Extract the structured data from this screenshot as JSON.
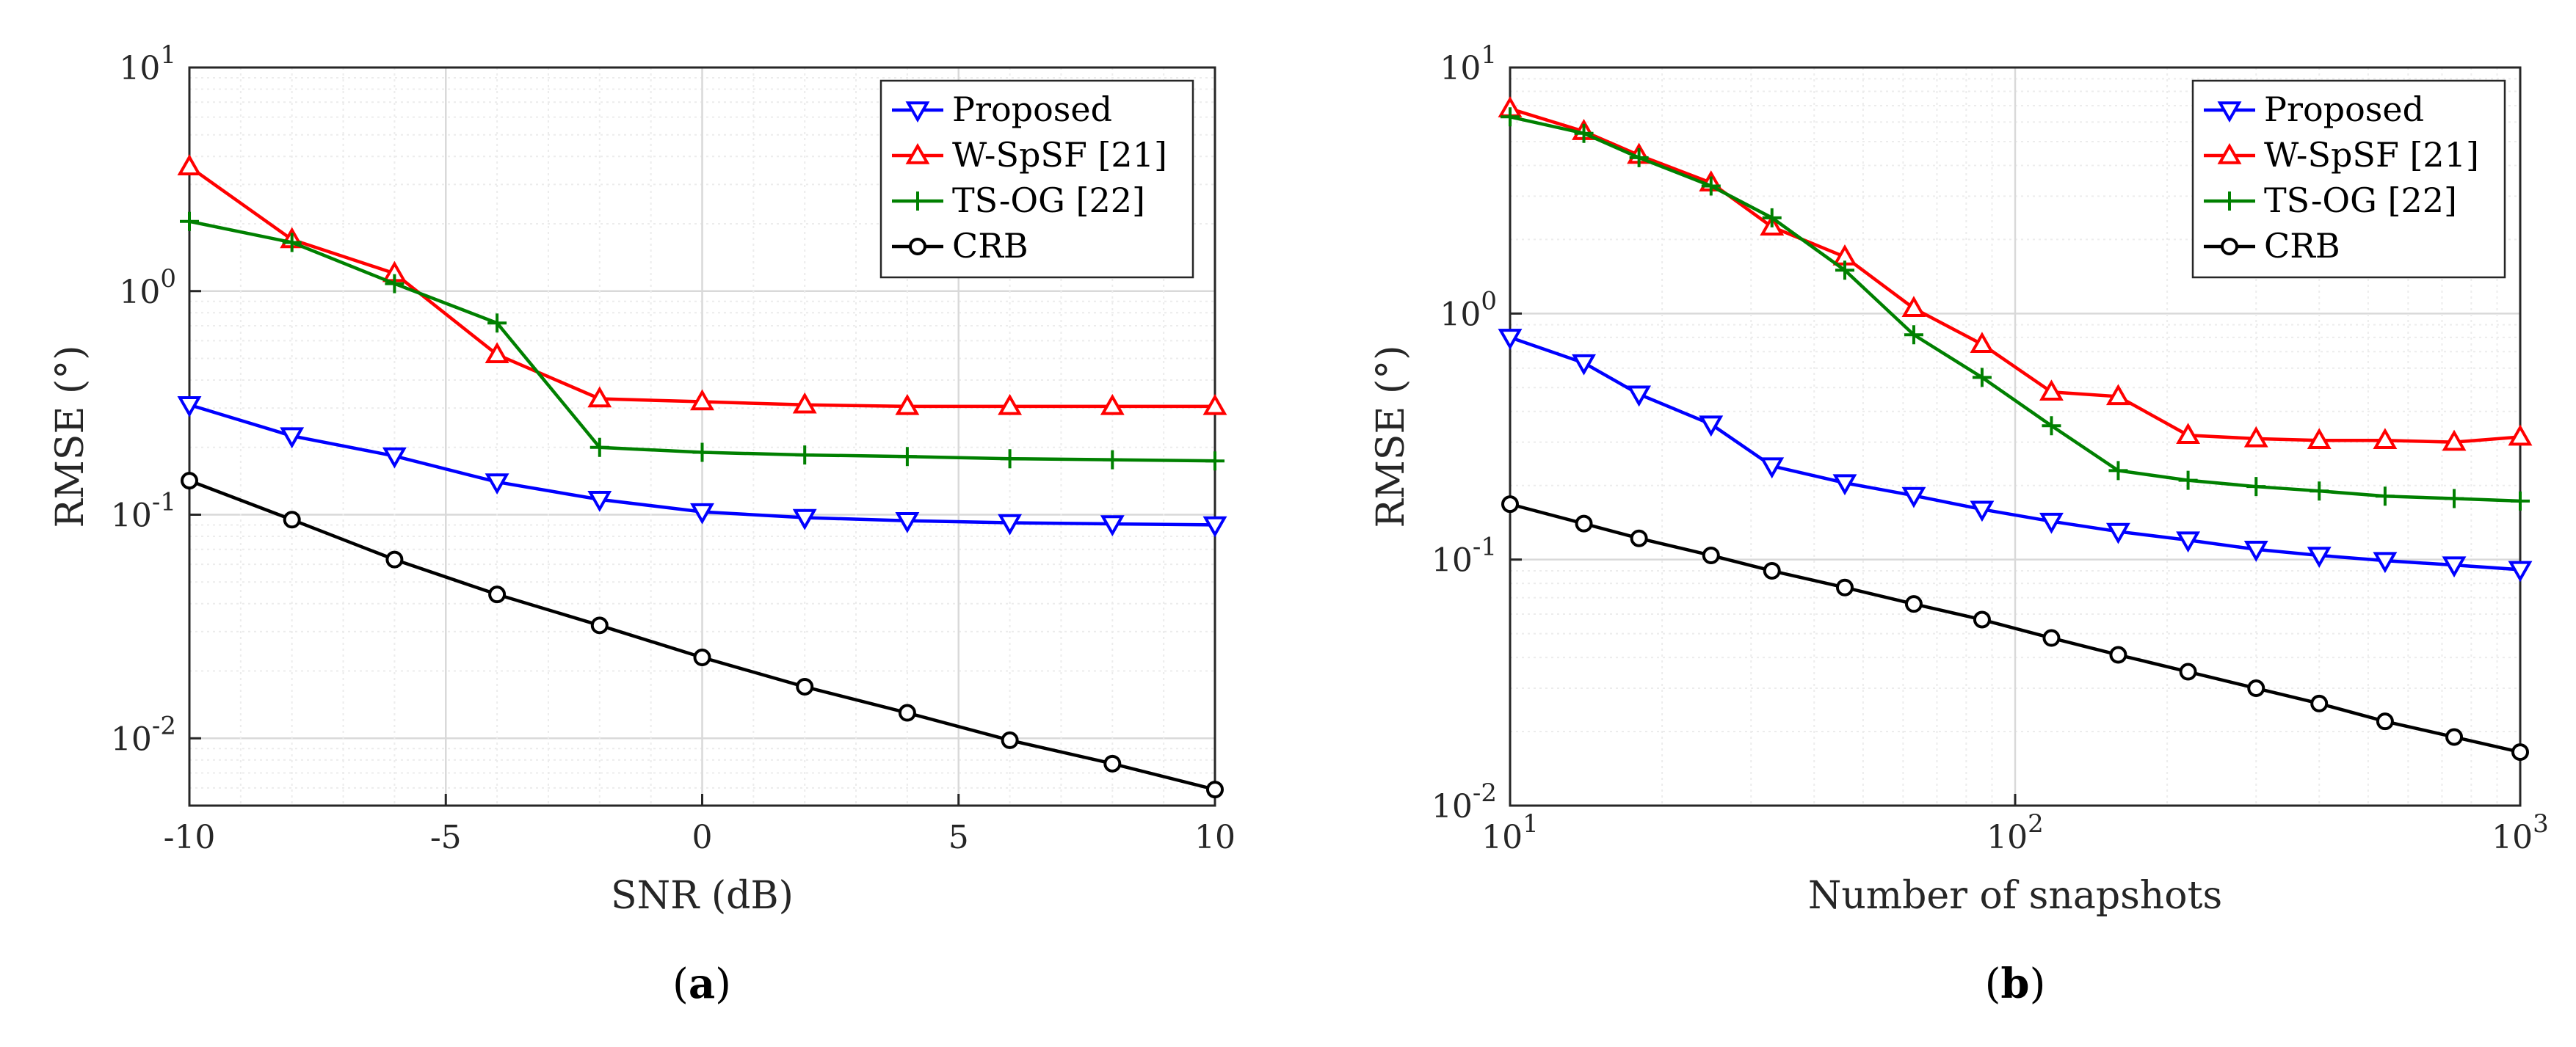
{
  "colors": {
    "proposed": "#0000ff",
    "wspsf": "#ff0000",
    "tsog": "#008000",
    "crb": "#000000"
  },
  "chart_data": [
    {
      "type": "line",
      "panel": "(a)",
      "xscale": "linear",
      "yscale": "log",
      "xlabel": "SNR (dB)",
      "ylabel": "RMSE (°)",
      "xlim": [
        -10,
        10
      ],
      "ylim": [
        0.005,
        10
      ],
      "xticks": [
        -10,
        -5,
        0,
        5,
        10
      ],
      "xtick_labels": [
        "-10",
        "-5",
        "0",
        "5",
        "10"
      ],
      "yticks": [
        0.01,
        0.1,
        1,
        10
      ],
      "ytick_labels": [
        [
          "10",
          "-2"
        ],
        [
          "10",
          "-1"
        ],
        [
          "10",
          "0"
        ],
        [
          "10",
          "1"
        ]
      ],
      "grid": true,
      "legend_position": "top-right",
      "x": [
        -10,
        -8,
        -6,
        -4,
        -2,
        0,
        2,
        4,
        6,
        8,
        10
      ],
      "series": [
        {
          "name": "Proposed",
          "color_key": "proposed",
          "marker": "triangle-down",
          "values": [
            0.31,
            0.225,
            0.183,
            0.14,
            0.117,
            0.103,
            0.097,
            0.094,
            0.092,
            0.091,
            0.09
          ]
        },
        {
          "name": "W-SpSF [21]",
          "color_key": "wspsf",
          "marker": "triangle-up",
          "values": [
            3.6,
            1.7,
            1.2,
            0.52,
            0.33,
            0.32,
            0.31,
            0.305,
            0.305,
            0.305,
            0.305
          ]
        },
        {
          "name": "TS-OG [22]",
          "color_key": "tsog",
          "marker": "plus",
          "values": [
            2.05,
            1.65,
            1.08,
            0.72,
            0.2,
            0.19,
            0.185,
            0.182,
            0.178,
            0.176,
            0.174
          ]
        },
        {
          "name": "CRB",
          "color_key": "crb",
          "marker": "circle",
          "values": [
            0.142,
            0.095,
            0.063,
            0.044,
            0.032,
            0.023,
            0.017,
            0.013,
            0.0098,
            0.0077,
            0.0059
          ]
        }
      ]
    },
    {
      "type": "line",
      "panel": "(b)",
      "xscale": "log",
      "yscale": "log",
      "xlabel": "Number of snapshots",
      "ylabel": "RMSE (°)",
      "xlim": [
        10,
        1000
      ],
      "ylim": [
        0.01,
        10
      ],
      "xticks": [
        10,
        100,
        1000
      ],
      "xtick_labels": [
        [
          "10",
          "1"
        ],
        [
          "10",
          "2"
        ],
        [
          "10",
          "3"
        ]
      ],
      "yticks": [
        0.01,
        0.1,
        1,
        10
      ],
      "ytick_labels": [
        [
          "10",
          "-2"
        ],
        [
          "10",
          "-1"
        ],
        [
          "10",
          "0"
        ],
        [
          "10",
          "1"
        ]
      ],
      "grid": true,
      "legend_position": "top-right",
      "x": [
        10,
        14,
        18,
        25,
        33,
        46,
        63,
        86,
        118,
        160,
        220,
        300,
        400,
        540,
        740,
        1000
      ],
      "series": [
        {
          "name": "Proposed",
          "color_key": "proposed",
          "marker": "triangle-down",
          "values": [
            0.8,
            0.63,
            0.47,
            0.355,
            0.24,
            0.205,
            0.182,
            0.16,
            0.143,
            0.13,
            0.12,
            0.11,
            0.104,
            0.099,
            0.095,
            0.091
          ]
        },
        {
          "name": "W-SpSF [21]",
          "color_key": "wspsf",
          "marker": "triangle-up",
          "values": [
            6.8,
            5.5,
            4.4,
            3.4,
            2.25,
            1.7,
            1.05,
            0.75,
            0.48,
            0.46,
            0.32,
            0.31,
            0.305,
            0.305,
            0.3,
            0.315
          ]
        },
        {
          "name": "TS-OG [22]",
          "color_key": "tsog",
          "marker": "plus",
          "values": [
            6.3,
            5.4,
            4.3,
            3.3,
            2.45,
            1.5,
            0.82,
            0.55,
            0.35,
            0.23,
            0.21,
            0.198,
            0.19,
            0.181,
            0.177,
            0.173
          ]
        },
        {
          "name": "CRB",
          "color_key": "crb",
          "marker": "circle",
          "values": [
            0.168,
            0.14,
            0.122,
            0.104,
            0.09,
            0.077,
            0.066,
            0.057,
            0.048,
            0.041,
            0.035,
            0.03,
            0.026,
            0.022,
            0.019,
            0.0165
          ]
        }
      ]
    }
  ],
  "captions": [
    "(a)",
    "(b)"
  ]
}
